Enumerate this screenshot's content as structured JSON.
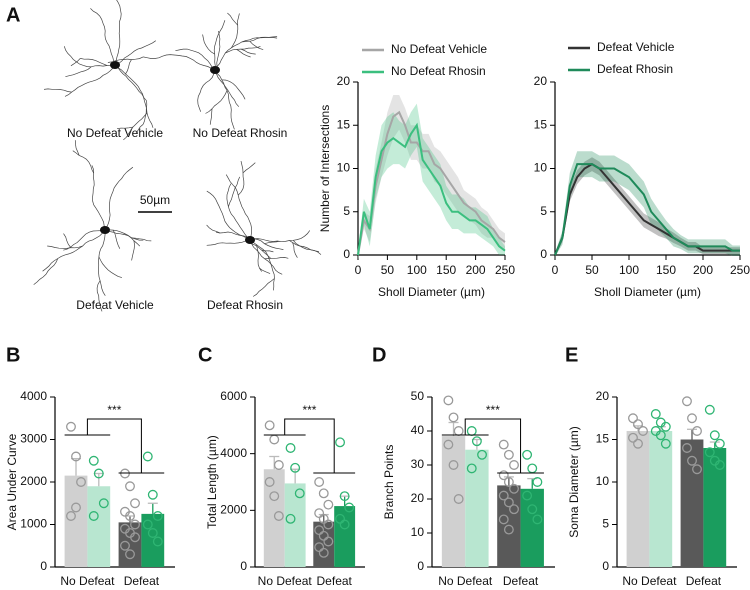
{
  "panel_labels": [
    "A",
    "B",
    "C",
    "D",
    "E"
  ],
  "neuron_labels": [
    "No Defeat Vehicle",
    "No Defeat Rhosin",
    "Defeat Vehicle",
    "Defeat Rhosin"
  ],
  "scale_bar": "50µm",
  "chart_data": [
    {
      "type": "line",
      "xlabel": "Sholl Diameter (µm)",
      "ylabel": "Number of Intersections",
      "x": [
        0,
        10,
        20,
        30,
        40,
        50,
        60,
        70,
        80,
        90,
        100,
        110,
        120,
        130,
        140,
        150,
        160,
        170,
        180,
        190,
        200,
        210,
        220,
        230,
        240,
        250
      ],
      "xlim": [
        0,
        250
      ],
      "xticks": [
        0,
        50,
        100,
        150,
        200,
        250
      ],
      "ylim": [
        0,
        20
      ],
      "yticks": [
        0,
        5,
        10,
        15,
        20
      ],
      "series": [
        {
          "name": "No Defeat Vehicle",
          "color": "#a6a6a6",
          "values": [
            0,
            4,
            3,
            8,
            11,
            14,
            16,
            16.5,
            15,
            13,
            13,
            12,
            12,
            10.5,
            10,
            9,
            8,
            7,
            6,
            5.5,
            5,
            4,
            3.5,
            3,
            2,
            1.5
          ],
          "errors": [
            0.5,
            1,
            1.5,
            2,
            2,
            2.5,
            2.5,
            2,
            2,
            2,
            2,
            2,
            2,
            2,
            2,
            2,
            2,
            2,
            1.5,
            1.5,
            1.5,
            1.5,
            1.5,
            1,
            1,
            1
          ]
        },
        {
          "name": "No Defeat Rhosin",
          "color": "#3bbf7f",
          "values": [
            0,
            5,
            3,
            9,
            12,
            13,
            13.5,
            13,
            12.5,
            14,
            15,
            11,
            10,
            9,
            8,
            6,
            5,
            5,
            4.5,
            4,
            4,
            3.5,
            3,
            2,
            1,
            0.5
          ],
          "errors": [
            0.5,
            1.5,
            2,
            2.5,
            3,
            3,
            3,
            2.5,
            2.5,
            2.5,
            2.5,
            2.5,
            2.5,
            2.5,
            2.5,
            2,
            2,
            2,
            2,
            1.5,
            1.5,
            1.5,
            1.5,
            1,
            1,
            0.5
          ]
        }
      ]
    },
    {
      "type": "line",
      "xlabel": "Sholl Diameter (µm)",
      "x": [
        0,
        10,
        20,
        30,
        40,
        50,
        60,
        70,
        80,
        90,
        100,
        110,
        120,
        130,
        140,
        150,
        160,
        170,
        180,
        190,
        200,
        210,
        220,
        230,
        240,
        250
      ],
      "xlim": [
        0,
        250
      ],
      "xticks": [
        0,
        50,
        100,
        150,
        200,
        250
      ],
      "ylim": [
        0,
        20
      ],
      "yticks": [
        0,
        5,
        10,
        15,
        20
      ],
      "series": [
        {
          "name": "Defeat Vehicle",
          "color": "#333333",
          "values": [
            0,
            2,
            7,
            9,
            10,
            10.5,
            10,
            9,
            8,
            7,
            6,
            5,
            4,
            3.5,
            3,
            2.5,
            2,
            1.5,
            1,
            1,
            0.5,
            0.5,
            0.5,
            0.5,
            0.5,
            0.5
          ],
          "errors": [
            0.2,
            0.5,
            0.8,
            0.8,
            0.8,
            0.8,
            0.8,
            0.8,
            0.8,
            0.8,
            0.8,
            0.8,
            0.8,
            0.8,
            0.8,
            0.6,
            0.6,
            0.5,
            0.5,
            0.5,
            0.4,
            0.4,
            0.4,
            0.4,
            0.4,
            0.4
          ]
        },
        {
          "name": "Defeat Rhosin",
          "color": "#1f8a5a",
          "values": [
            0,
            2,
            8,
            10.5,
            10.5,
            10.5,
            10,
            10,
            10,
            9.5,
            9,
            8,
            7,
            5,
            4,
            3,
            2,
            1.5,
            1,
            1,
            1,
            1,
            1,
            1,
            0.5,
            0.5
          ],
          "errors": [
            0.2,
            0.8,
            1.5,
            1.5,
            1.5,
            1.5,
            1.5,
            1.5,
            1.5,
            1.5,
            1.5,
            1.5,
            1.5,
            1.5,
            1.2,
            1,
            1,
            0.8,
            0.8,
            0.8,
            0.8,
            0.8,
            0.8,
            0.8,
            0.6,
            0.6
          ]
        }
      ]
    },
    {
      "type": "bar",
      "ylabel": "Area Under Curve",
      "categories": [
        "No Defeat",
        "Defeat"
      ],
      "ylim": [
        0,
        4000
      ],
      "yticks": [
        0,
        1000,
        2000,
        3000,
        4000
      ],
      "annotation": "***",
      "series": [
        {
          "colors": [
            "#d0d0d0",
            "#595959"
          ],
          "point_color": "#999999",
          "values": [
            2150,
            1050
          ],
          "errors": [
            400,
            150
          ],
          "points": [
            [
              3300,
              2600,
              2000,
              1200,
              1400
            ],
            [
              2200,
              1900,
              1500,
              1300,
              1200,
              1000,
              900,
              800,
              700,
              500,
              300
            ]
          ]
        },
        {
          "colors": [
            "#b8e6d0",
            "#1a9d5e"
          ],
          "point_color": "#2fb573",
          "values": [
            1900,
            1250
          ],
          "errors": [
            300,
            250
          ],
          "points": [
            [
              2500,
              2200,
              1500,
              1200
            ],
            [
              2600,
              1700,
              1200,
              1000,
              800,
              600
            ]
          ]
        }
      ]
    },
    {
      "type": "bar",
      "ylabel": "Total Length (µm)",
      "categories": [
        "No Defeat",
        "Defeat"
      ],
      "ylim": [
        0,
        6000
      ],
      "yticks": [
        0,
        2000,
        4000,
        6000
      ],
      "annotation": "***",
      "series": [
        {
          "colors": [
            "#d0d0d0",
            "#595959"
          ],
          "point_color": "#999999",
          "values": [
            3450,
            1600
          ],
          "errors": [
            450,
            250
          ],
          "points": [
            [
              5000,
              4500,
              3600,
              3000,
              2500,
              1800
            ],
            [
              3000,
              2600,
              2200,
              1900,
              1700,
              1500,
              1300,
              1100,
              900,
              700,
              500
            ]
          ]
        },
        {
          "colors": [
            "#b8e6d0",
            "#1a9d5e"
          ],
          "point_color": "#2fb573",
          "values": [
            2950,
            2150
          ],
          "errors": [
            500,
            350
          ],
          "points": [
            [
              4200,
              3500,
              2600,
              1700
            ],
            [
              4400,
              2500,
              2100,
              1700,
              1500
            ]
          ]
        }
      ]
    },
    {
      "type": "bar",
      "ylabel": "Branch Points",
      "categories": [
        "No Defeat",
        "Defeat"
      ],
      "ylim": [
        0,
        50
      ],
      "yticks": [
        0,
        10,
        20,
        30,
        40,
        50
      ],
      "annotation": "***",
      "series": [
        {
          "colors": [
            "#d0d0d0",
            "#595959"
          ],
          "point_color": "#999999",
          "values": [
            38.5,
            24
          ],
          "errors": [
            4,
            2.5
          ],
          "points": [
            [
              49,
              44,
              40,
              36,
              30,
              20
            ],
            [
              36,
              33,
              30,
              27,
              25,
              23,
              21,
              19,
              17,
              14,
              11
            ]
          ]
        },
        {
          "colors": [
            "#b8e6d0",
            "#1a9d5e"
          ],
          "point_color": "#2fb573",
          "values": [
            34.5,
            23
          ],
          "errors": [
            3,
            3
          ],
          "points": [
            [
              40,
              37,
              33,
              29
            ],
            [
              33,
              29,
              25,
              21,
              17,
              14
            ]
          ]
        }
      ]
    },
    {
      "type": "bar",
      "ylabel": "Soma Diameter (µm)",
      "categories": [
        "No Defeat",
        "Defeat"
      ],
      "ylim": [
        0,
        20
      ],
      "yticks": [
        0,
        5,
        10,
        15,
        20
      ],
      "series": [
        {
          "colors": [
            "#d0d0d0",
            "#595959"
          ],
          "point_color": "#999999",
          "values": [
            16,
            15
          ],
          "errors": [
            0.6,
            1.2
          ],
          "points": [
            [
              17.5,
              16.8,
              16,
              15.2,
              14.5
            ],
            [
              19.5,
              17.5,
              16,
              14,
              12.5,
              11.5
            ]
          ]
        },
        {
          "colors": [
            "#b8e6d0",
            "#1a9d5e"
          ],
          "point_color": "#2fb573",
          "values": [
            16,
            14
          ],
          "errors": [
            0.5,
            0.7
          ],
          "points": [
            [
              18,
              17,
              16.5,
              16,
              15.5,
              14.5
            ],
            [
              18.5,
              15.5,
              14.5,
              13.5,
              12.5,
              12
            ]
          ]
        }
      ]
    }
  ]
}
